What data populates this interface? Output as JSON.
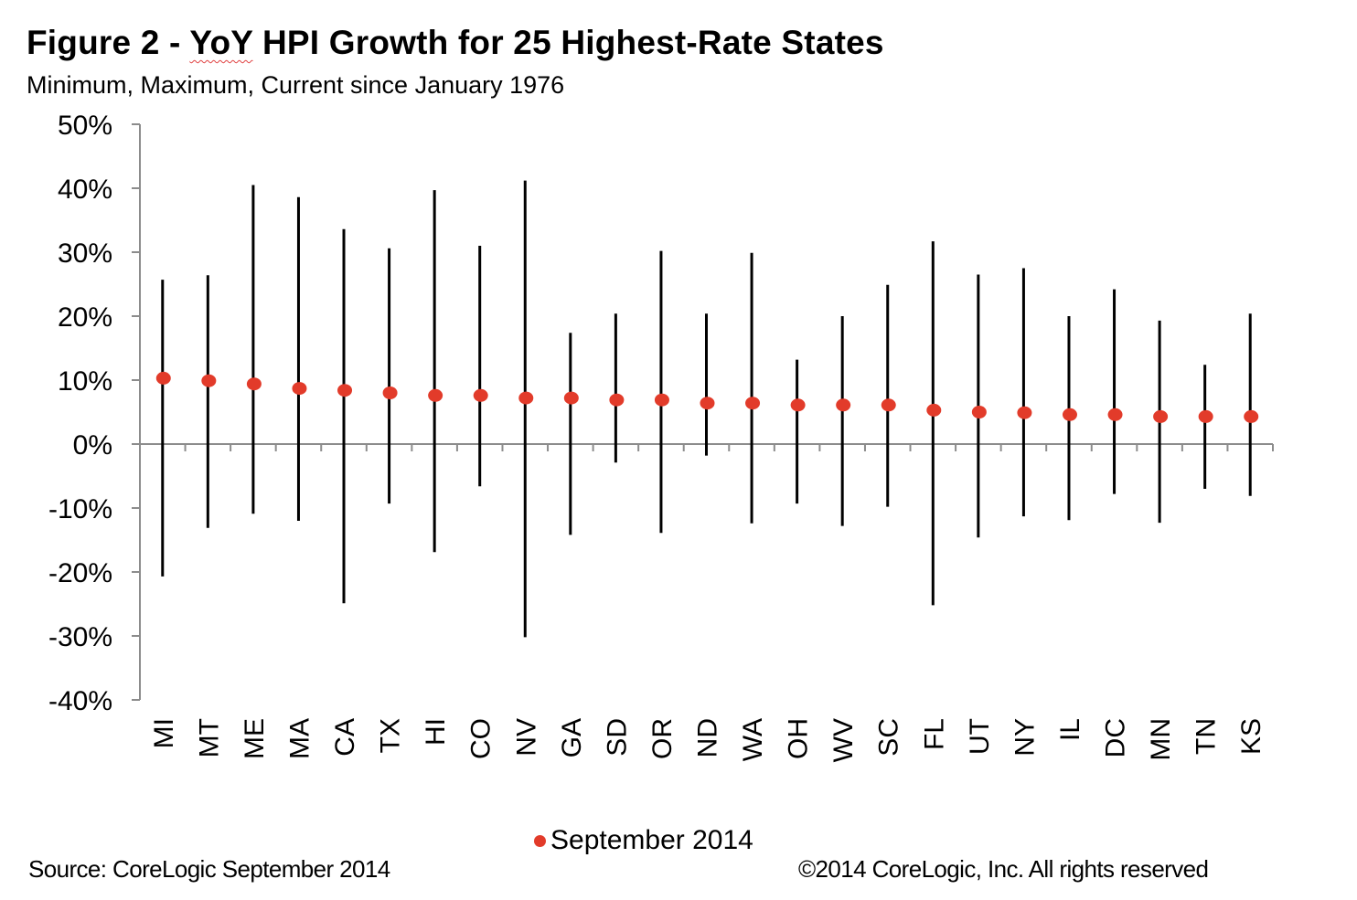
{
  "header": {
    "title_prefix": "Figure 2 - ",
    "title_flagged_word": "YoY",
    "title_suffix": " HPI Growth for 25 Highest-Rate States",
    "subtitle": "Minimum, Maximum, Current since January 1976"
  },
  "footer": {
    "source": "Source: CoreLogic  September 2014",
    "copyright": "©2014 CoreLogic, Inc. All rights reserved"
  },
  "colors": {
    "marker": "#e23b2a",
    "range_line": "#000000",
    "axis": "#8c8c8c"
  },
  "chart_data": {
    "type": "scatter",
    "subtype": "high-low with current marker",
    "title": "Figure 2 - YoY HPI Growth for 25 Highest-Rate States",
    "subtitle": "Minimum, Maximum, Current since January 1976",
    "xlabel": "",
    "ylabel": "",
    "ylim": [
      -0.4,
      0.5
    ],
    "yticks": [
      0.5,
      0.4,
      0.3,
      0.2,
      0.1,
      0,
      -0.1,
      -0.2,
      -0.3,
      -0.4
    ],
    "ytick_labels": [
      "50%",
      "40%",
      "30%",
      "20%",
      "10%",
      "0%",
      "-10%",
      "-20%",
      "-30%",
      "-40%"
    ],
    "grid": false,
    "legend": {
      "position": "bottom-center",
      "entries": [
        "September 2014"
      ]
    },
    "categories": [
      "MI",
      "MT",
      "ME",
      "MA",
      "CA",
      "TX",
      "HI",
      "CO",
      "NV",
      "GA",
      "SD",
      "OR",
      "ND",
      "WA",
      "OH",
      "WV",
      "SC",
      "FL",
      "UT",
      "NY",
      "IL",
      "DC",
      "MN",
      "TN",
      "KS"
    ],
    "series": [
      {
        "name": "Maximum",
        "values": [
          0.257,
          0.264,
          0.405,
          0.386,
          0.336,
          0.306,
          0.397,
          0.31,
          0.412,
          0.174,
          0.204,
          0.302,
          0.204,
          0.299,
          0.132,
          0.2,
          0.249,
          0.317,
          0.265,
          0.275,
          0.2,
          0.242,
          0.193,
          0.124,
          0.204
        ]
      },
      {
        "name": "Minimum",
        "values": [
          -0.207,
          -0.131,
          -0.109,
          -0.12,
          -0.249,
          -0.093,
          -0.169,
          -0.066,
          -0.302,
          -0.142,
          -0.029,
          -0.139,
          -0.018,
          -0.124,
          -0.093,
          -0.128,
          -0.098,
          -0.252,
          -0.146,
          -0.113,
          -0.119,
          -0.078,
          -0.123,
          -0.07,
          -0.081
        ]
      },
      {
        "name": "September 2014",
        "values": [
          0.103,
          0.099,
          0.094,
          0.087,
          0.084,
          0.08,
          0.076,
          0.076,
          0.072,
          0.072,
          0.069,
          0.069,
          0.064,
          0.064,
          0.061,
          0.061,
          0.061,
          0.053,
          0.05,
          0.049,
          0.046,
          0.046,
          0.043,
          0.043,
          0.043
        ]
      }
    ]
  }
}
